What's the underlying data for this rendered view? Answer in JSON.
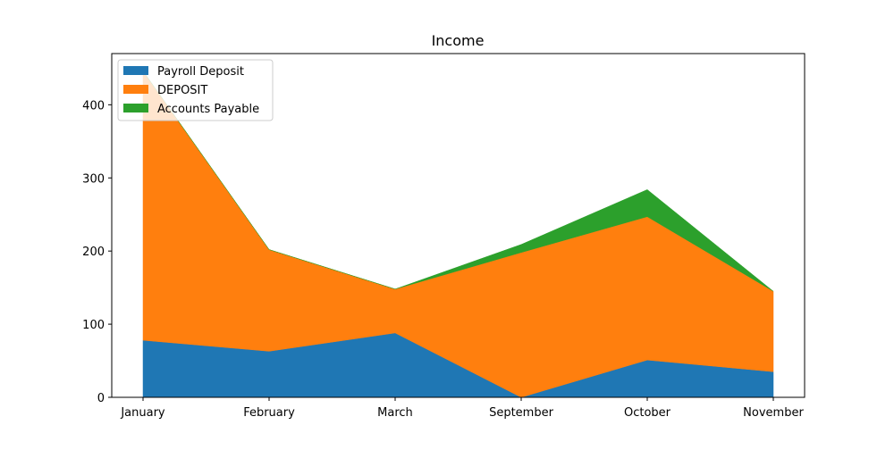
{
  "chart_data": {
    "type": "area",
    "stacked": true,
    "title": "Income",
    "xlabel": "",
    "ylabel": "",
    "categories": [
      "January",
      "February",
      "March",
      "September",
      "October",
      "November"
    ],
    "series": [
      {
        "name": "Payroll Deposit",
        "color": "#1f77b4",
        "values": [
          78,
          63,
          88,
          0,
          51,
          35
        ]
      },
      {
        "name": "DEPOSIT",
        "color": "#ff7f0e",
        "values": [
          368,
          139,
          60,
          198,
          196,
          110
        ]
      },
      {
        "name": "Accounts Payable",
        "color": "#2ca02c",
        "values": [
          0,
          0,
          0,
          11,
          37,
          0
        ]
      }
    ],
    "ylim": [
      0,
      470
    ],
    "yticks": [
      0,
      100,
      200,
      300,
      400
    ],
    "grid": false,
    "legend_position": "top-left"
  }
}
